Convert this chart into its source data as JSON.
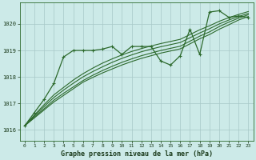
{
  "title": "Graphe pression niveau de la mer (hPa)",
  "background_color": "#cceae8",
  "line_color": "#2d6a2d",
  "xlim": [
    -0.5,
    23.5
  ],
  "ylim": [
    1015.6,
    1020.8
  ],
  "yticks": [
    1016,
    1017,
    1018,
    1019,
    1020
  ],
  "xticks": [
    0,
    1,
    2,
    3,
    4,
    5,
    6,
    7,
    8,
    9,
    10,
    11,
    12,
    13,
    14,
    15,
    16,
    17,
    18,
    19,
    20,
    21,
    22,
    23
  ],
  "wiggly": [
    1016.15,
    1016.65,
    1017.15,
    1017.75,
    1018.75,
    1019.0,
    1019.0,
    1019.0,
    1019.05,
    1019.15,
    1018.85,
    1019.15,
    1019.15,
    1019.15,
    1018.6,
    1018.45,
    1018.8,
    1019.8,
    1018.85,
    1020.45,
    1020.5,
    1020.25,
    1020.3,
    1020.25
  ],
  "linear1": [
    1016.15,
    1016.45,
    1016.75,
    1017.05,
    1017.3,
    1017.55,
    1017.8,
    1017.98,
    1018.15,
    1018.3,
    1018.45,
    1018.58,
    1018.7,
    1018.8,
    1018.9,
    1018.98,
    1019.06,
    1019.25,
    1019.44,
    1019.6,
    1019.8,
    1019.97,
    1020.15,
    1020.28
  ],
  "linear2": [
    1016.15,
    1016.48,
    1016.8,
    1017.12,
    1017.38,
    1017.62,
    1017.86,
    1018.06,
    1018.24,
    1018.4,
    1018.55,
    1018.68,
    1018.8,
    1018.9,
    1019.0,
    1019.08,
    1019.16,
    1019.35,
    1019.54,
    1019.7,
    1019.9,
    1020.07,
    1020.22,
    1020.35
  ],
  "linear3": [
    1016.15,
    1016.52,
    1016.88,
    1017.22,
    1017.5,
    1017.76,
    1018.0,
    1018.2,
    1018.38,
    1018.55,
    1018.7,
    1018.83,
    1018.95,
    1019.05,
    1019.14,
    1019.22,
    1019.3,
    1019.48,
    1019.66,
    1019.82,
    1020.0,
    1020.15,
    1020.28,
    1020.4
  ],
  "linear4": [
    1016.15,
    1016.56,
    1016.95,
    1017.32,
    1017.6,
    1017.88,
    1018.12,
    1018.33,
    1018.52,
    1018.68,
    1018.83,
    1018.96,
    1019.07,
    1019.17,
    1019.26,
    1019.34,
    1019.42,
    1019.6,
    1019.78,
    1019.93,
    1020.1,
    1020.24,
    1020.36,
    1020.47
  ]
}
